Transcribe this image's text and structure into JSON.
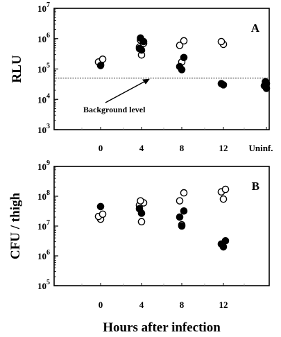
{
  "chart_data": [
    {
      "panel": "A",
      "type": "scatter",
      "ylabel": "RLU",
      "yscale": "log",
      "ylim": [
        1000,
        10000000
      ],
      "yticks": [
        {
          "value": 1000,
          "base": "10",
          "exp": "3"
        },
        {
          "value": 10000,
          "base": "10",
          "exp": "4"
        },
        {
          "value": 100000,
          "base": "10",
          "exp": "5"
        },
        {
          "value": 1000000,
          "base": "10",
          "exp": "6"
        },
        {
          "value": 10000000,
          "base": "10",
          "exp": "7"
        }
      ],
      "categories": [
        "0",
        "4",
        "8",
        "12",
        "Uninf."
      ],
      "background_level": 50000,
      "annotation": "Background level",
      "series": [
        {
          "marker": "open",
          "points": [
            {
              "x": "0",
              "y": 140000
            },
            {
              "x": "0",
              "y": 170000
            },
            {
              "x": "0",
              "y": 210000
            },
            {
              "x": "4",
              "y": 290000
            },
            {
              "x": "4",
              "y": 530000
            },
            {
              "x": "4",
              "y": 700000
            },
            {
              "x": "4",
              "y": 900000
            },
            {
              "x": "8",
              "y": 170000
            },
            {
              "x": "8",
              "y": 600000
            },
            {
              "x": "8",
              "y": 850000
            },
            {
              "x": "12",
              "y": 650000
            },
            {
              "x": "12",
              "y": 800000
            }
          ]
        },
        {
          "marker": "filled",
          "points": [
            {
              "x": "0",
              "y": 130000
            },
            {
              "x": "4",
              "y": 420000
            },
            {
              "x": "4",
              "y": 470000
            },
            {
              "x": "4",
              "y": 800000
            },
            {
              "x": "4",
              "y": 1050000
            },
            {
              "x": "8",
              "y": 95000
            },
            {
              "x": "8",
              "y": 120000
            },
            {
              "x": "8",
              "y": 240000
            },
            {
              "x": "12",
              "y": 30000
            },
            {
              "x": "12",
              "y": 33000
            },
            {
              "x": "Uninf.",
              "y": 23000
            },
            {
              "x": "Uninf.",
              "y": 28000
            },
            {
              "x": "Uninf.",
              "y": 33000
            },
            {
              "x": "Uninf.",
              "y": 38000
            }
          ]
        }
      ]
    },
    {
      "panel": "B",
      "type": "scatter",
      "ylabel": "CFU / thigh",
      "xlabel": "Hours after infection",
      "yscale": "log",
      "ylim": [
        100000,
        1000000000
      ],
      "yticks": [
        {
          "value": 100000,
          "base": "10",
          "exp": "5"
        },
        {
          "value": 1000000,
          "base": "10",
          "exp": "6"
        },
        {
          "value": 10000000,
          "base": "10",
          "exp": "7"
        },
        {
          "value": 100000000,
          "base": "10",
          "exp": "8"
        },
        {
          "value": 1000000000,
          "base": "10",
          "exp": "9"
        }
      ],
      "categories": [
        "0",
        "4",
        "8",
        "12"
      ],
      "series": [
        {
          "marker": "open",
          "points": [
            {
              "x": "0",
              "y": 17000000
            },
            {
              "x": "0",
              "y": 21000000
            },
            {
              "x": "0",
              "y": 25000000
            },
            {
              "x": "4",
              "y": 14000000
            },
            {
              "x": "4",
              "y": 50000000
            },
            {
              "x": "4",
              "y": 60000000
            },
            {
              "x": "4",
              "y": 70000000
            },
            {
              "x": "8",
              "y": 11000000
            },
            {
              "x": "8",
              "y": 70000000
            },
            {
              "x": "8",
              "y": 130000000
            },
            {
              "x": "12",
              "y": 80000000
            },
            {
              "x": "12",
              "y": 140000000
            },
            {
              "x": "12",
              "y": 170000000
            }
          ]
        },
        {
          "marker": "filled",
          "points": [
            {
              "x": "0",
              "y": 45000000
            },
            {
              "x": "4",
              "y": 27000000
            },
            {
              "x": "4",
              "y": 38000000
            },
            {
              "x": "8",
              "y": 10000000
            },
            {
              "x": "8",
              "y": 20000000
            },
            {
              "x": "8",
              "y": 32000000
            },
            {
              "x": "12",
              "y": 2000000
            },
            {
              "x": "12",
              "y": 2500000
            },
            {
              "x": "12",
              "y": 3200000
            }
          ]
        }
      ]
    }
  ]
}
